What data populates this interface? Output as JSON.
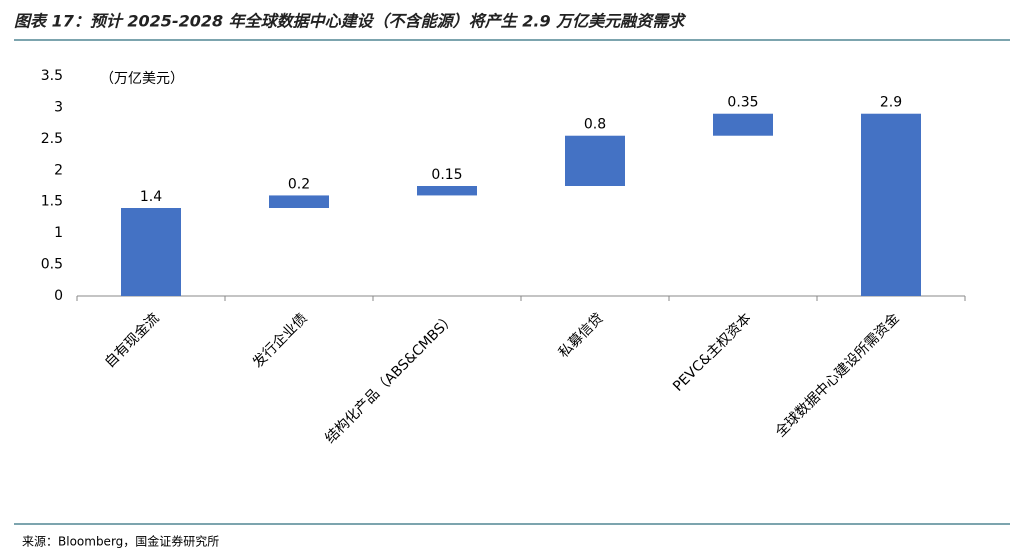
{
  "chart_data": {
    "type": "waterfall",
    "title": "图表 17：预计 2025-2028 年全球数据中心建设（不含能源）将产生 2.9 万亿美元融资需求",
    "unit_label": "（万亿美元）",
    "categories": [
      "自有现金流",
      "发行企业债",
      "结构化产品（ABS&CMBS）",
      "私募信贷",
      "PEVC&主权资本",
      "全球数据中心建设所需资金"
    ],
    "values": [
      1.4,
      0.2,
      0.15,
      0.8,
      0.35,
      2.9
    ],
    "color": "#4472c4",
    "ylim": [
      0,
      3.5
    ],
    "yticks": [
      0,
      0.5,
      1,
      1.5,
      2,
      2.5,
      3,
      3.5
    ],
    "grid": false,
    "source": "来源：Bloomberg，国金证券研究所"
  }
}
